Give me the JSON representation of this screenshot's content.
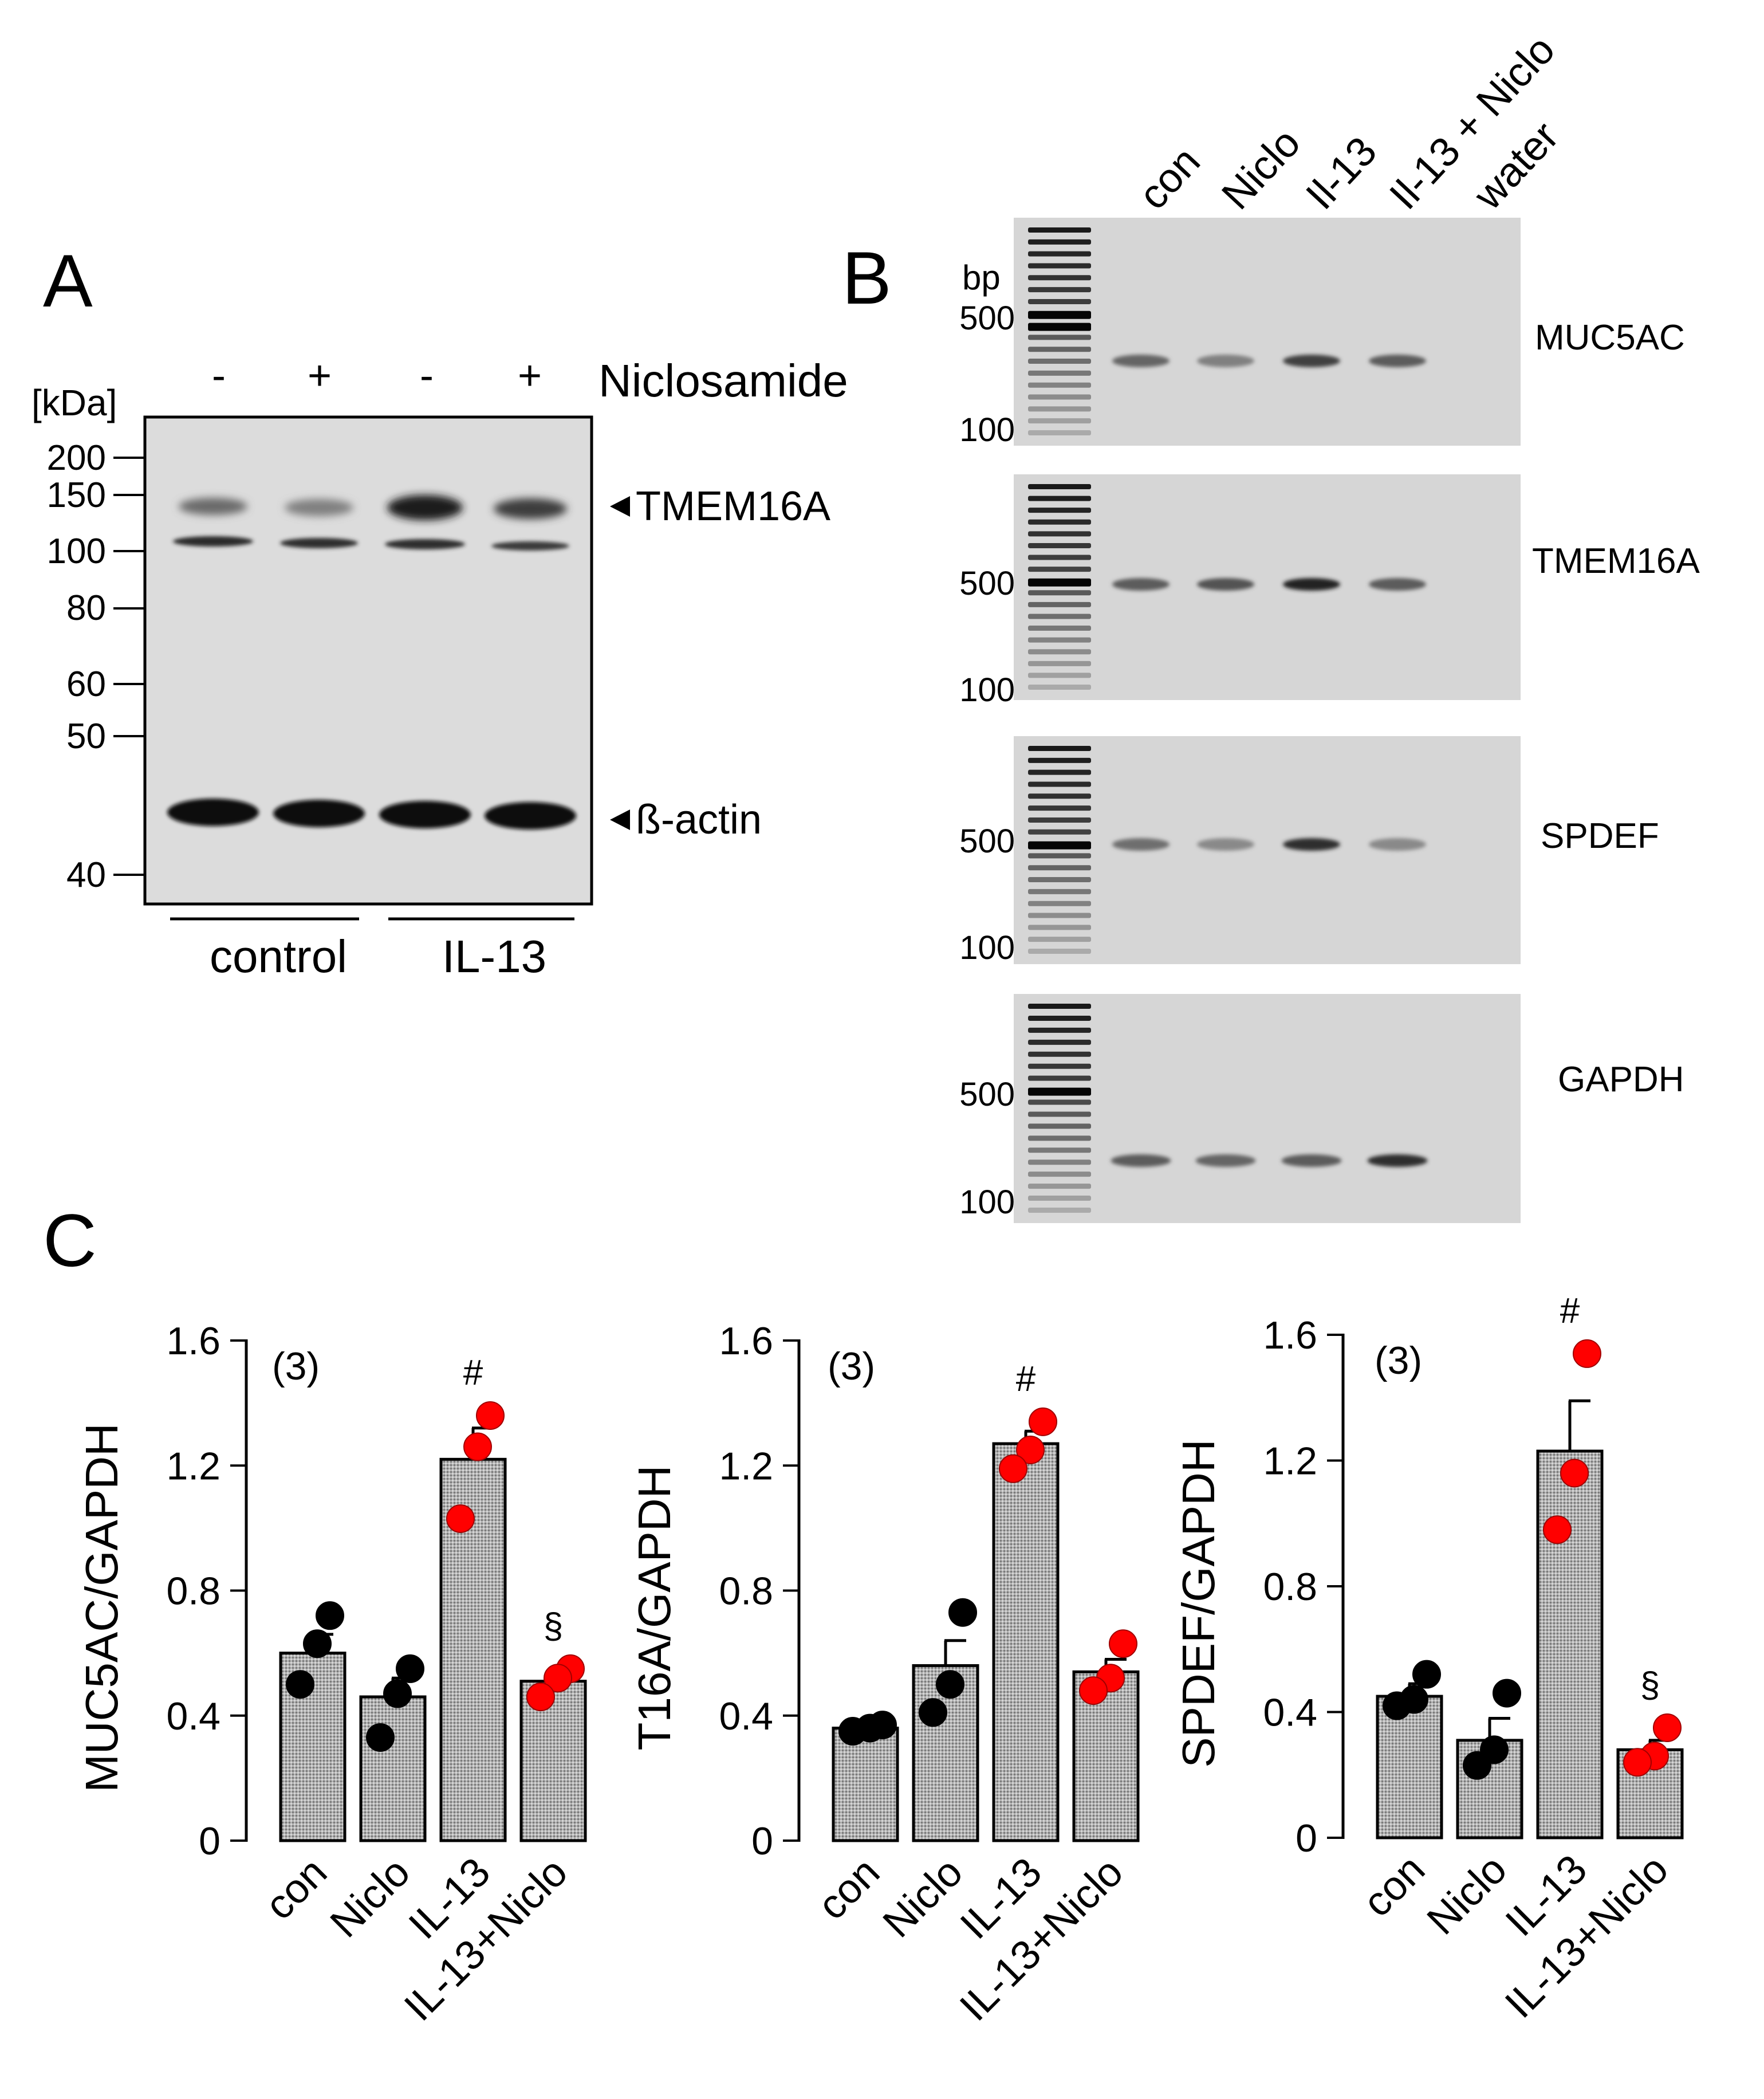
{
  "panelA": {
    "letter": "A",
    "treatment_label": "Niclosamide",
    "lane_signs": [
      "-",
      "+",
      "-",
      "+"
    ],
    "unit": "[kDa]",
    "markers": [
      "200",
      "150",
      "100",
      "80",
      "60",
      "50",
      "40"
    ],
    "band_labels": [
      "TMEM16A",
      "ß-actin"
    ],
    "groups": [
      "control",
      "IL-13"
    ]
  },
  "panelB": {
    "letter": "B",
    "lane_labels": [
      "con",
      "Niclo",
      "Il-13",
      "Il-13 + Niclo",
      "water"
    ],
    "unit": "bp",
    "gels": [
      {
        "gene": "MUC5AC",
        "markers": [
          "500",
          "100"
        ]
      },
      {
        "gene": "TMEM16A",
        "markers": [
          "500",
          "100"
        ]
      },
      {
        "gene": "SPDEF",
        "markers": [
          "500",
          "100"
        ]
      },
      {
        "gene": "GAPDH",
        "markers": [
          "500",
          "100"
        ]
      }
    ]
  },
  "panelC": {
    "letter": "C"
  },
  "chart_data": [
    {
      "type": "bar",
      "ylabel": "MUC5AC/GAPDH",
      "ylim": [
        0,
        1.6
      ],
      "yticks": [
        "0",
        "0.4",
        "0.8",
        "1.2",
        "1.6"
      ],
      "n_label": "(3)",
      "categories": [
        "con",
        "Niclo",
        "IL-13",
        "IL-13+Niclo"
      ],
      "values": [
        0.6,
        0.46,
        1.22,
        0.51
      ],
      "sem": [
        0.06,
        0.06,
        0.1,
        0.03
      ],
      "points": [
        [
          0.72,
          0.63,
          0.5
        ],
        [
          0.55,
          0.47,
          0.33
        ],
        [
          1.36,
          1.26,
          1.03
        ],
        [
          0.55,
          0.52,
          0.46
        ]
      ],
      "point_colors": [
        "#000000",
        "#000000",
        "#ff0000",
        "#ff0000"
      ],
      "annotations": [
        "",
        "",
        "#",
        "§"
      ]
    },
    {
      "type": "bar",
      "ylabel": "T16A/GAPDH",
      "ylim": [
        0,
        1.6
      ],
      "yticks": [
        "0",
        "0.4",
        "0.8",
        "1.2",
        "1.6"
      ],
      "n_label": "(3)",
      "categories": [
        "con",
        "Niclo",
        "IL-13",
        "IL-13+Niclo"
      ],
      "values": [
        0.36,
        0.56,
        1.27,
        0.54
      ],
      "sem": [
        0.01,
        0.08,
        0.04,
        0.04
      ],
      "points": [
        [
          0.37,
          0.36,
          0.35
        ],
        [
          0.73,
          0.5,
          0.41
        ],
        [
          1.34,
          1.25,
          1.19
        ],
        [
          0.63,
          0.52,
          0.48
        ]
      ],
      "point_colors": [
        "#000000",
        "#000000",
        "#ff0000",
        "#ff0000"
      ],
      "annotations": [
        "",
        "",
        "#",
        ""
      ]
    },
    {
      "type": "bar",
      "ylabel": "SPDEF/GAPDH",
      "ylim": [
        0,
        1.6
      ],
      "yticks": [
        "0",
        "0.4",
        "0.8",
        "1.2",
        "1.6"
      ],
      "n_label": "(3)",
      "categories": [
        "con",
        "Niclo",
        "IL-13",
        "IL-13+Niclo"
      ],
      "values": [
        0.45,
        0.31,
        1.23,
        0.28
      ],
      "sem": [
        0.04,
        0.07,
        0.16,
        0.03
      ],
      "points": [
        [
          0.52,
          0.44,
          0.42
        ],
        [
          0.46,
          0.28,
          0.23
        ],
        [
          1.54,
          1.16,
          0.98
        ],
        [
          0.35,
          0.26,
          0.24
        ]
      ],
      "point_colors": [
        "#000000",
        "#000000",
        "#ff0000",
        "#ff0000"
      ],
      "annotations": [
        "",
        "",
        "#",
        "§"
      ]
    }
  ]
}
